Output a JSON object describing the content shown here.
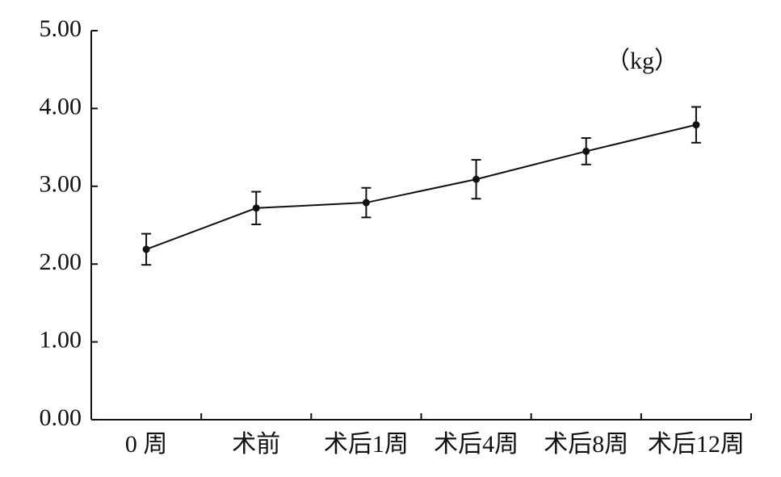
{
  "chart_data": {
    "type": "line",
    "unit_label": "（kg）",
    "categories": [
      "0 周",
      "术前",
      "术后1周",
      "术后4周",
      "术后8周",
      "术后12周"
    ],
    "values": [
      2.19,
      2.72,
      2.79,
      3.09,
      3.45,
      3.79
    ],
    "errors": [
      0.2,
      0.21,
      0.19,
      0.25,
      0.17,
      0.23
    ],
    "color": "#111111",
    "ylim": [
      0,
      5
    ],
    "yticks": [
      {
        "value": 0,
        "label": "0.00"
      },
      {
        "value": 1,
        "label": "1.00"
      },
      {
        "value": 2,
        "label": "2.00"
      },
      {
        "value": 3,
        "label": "3.00"
      },
      {
        "value": 4,
        "label": "4.00"
      },
      {
        "value": 5,
        "label": "5.00"
      }
    ]
  }
}
